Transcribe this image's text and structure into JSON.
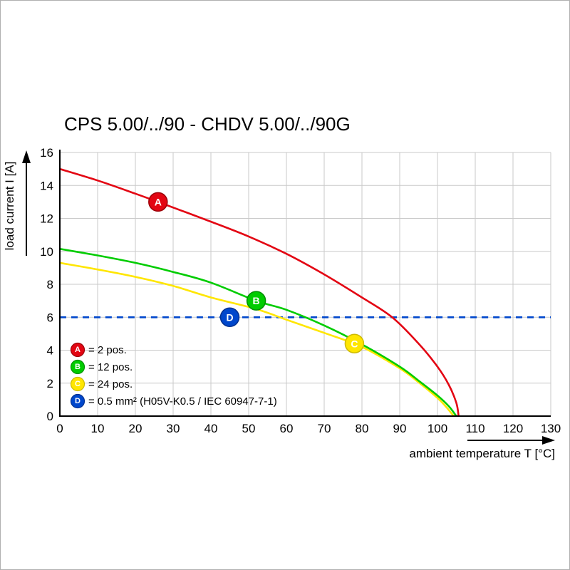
{
  "chart_data": {
    "type": "line",
    "title": "CPS 5.00/../90 - CHDV 5.00/../90G",
    "xlabel": "ambient temperature T [°C]",
    "ylabel": "load current I [A]",
    "xlim": [
      0,
      130
    ],
    "ylim": [
      0,
      16
    ],
    "xticks": [
      0,
      10,
      20,
      30,
      40,
      50,
      60,
      70,
      80,
      90,
      100,
      110,
      120,
      130
    ],
    "yticks": [
      0,
      2,
      4,
      6,
      8,
      10,
      12,
      14,
      16
    ],
    "grid": true,
    "legend_position": "bottom-left-inside",
    "series": [
      {
        "name": "A",
        "color": "#e30613",
        "border": "#9c0008",
        "marker_at": [
          26,
          13
        ],
        "points": [
          [
            0,
            15
          ],
          [
            10,
            14.3
          ],
          [
            20,
            13.5
          ],
          [
            26,
            13
          ],
          [
            40,
            11.8
          ],
          [
            50,
            10.9
          ],
          [
            60,
            9.85
          ],
          [
            70,
            8.6
          ],
          [
            80,
            7.2
          ],
          [
            88,
            6.0
          ],
          [
            95,
            4.4
          ],
          [
            100,
            3.0
          ],
          [
            103,
            1.9
          ],
          [
            105,
            0.8
          ],
          [
            105.6,
            0
          ]
        ]
      },
      {
        "name": "B",
        "color": "#00cc00",
        "border": "#008f00",
        "marker_at": [
          52,
          7
        ],
        "points": [
          [
            0,
            10.15
          ],
          [
            10,
            9.75
          ],
          [
            20,
            9.3
          ],
          [
            30,
            8.75
          ],
          [
            40,
            8.1
          ],
          [
            52,
            7.0
          ],
          [
            60,
            6.45
          ],
          [
            70,
            5.5
          ],
          [
            80,
            4.35
          ],
          [
            90,
            3.0
          ],
          [
            95,
            2.15
          ],
          [
            100,
            1.25
          ],
          [
            103,
            0.6
          ],
          [
            105,
            0
          ]
        ]
      },
      {
        "name": "C",
        "color": "#ffe600",
        "border": "#cdb900",
        "marker_at": [
          78,
          4.4
        ],
        "points": [
          [
            0,
            9.3
          ],
          [
            10,
            8.9
          ],
          [
            20,
            8.45
          ],
          [
            30,
            7.9
          ],
          [
            40,
            7.2
          ],
          [
            52,
            6.5
          ],
          [
            60,
            5.85
          ],
          [
            70,
            5.05
          ],
          [
            80,
            4.2
          ],
          [
            90,
            2.9
          ],
          [
            95,
            2.05
          ],
          [
            100,
            1.1
          ],
          [
            102.5,
            0.5
          ],
          [
            104.3,
            0
          ]
        ]
      },
      {
        "name": "D",
        "color": "#0047cc",
        "border": "#003090",
        "dashed": true,
        "marker_at": [
          45,
          6
        ],
        "points": [
          [
            0,
            6
          ],
          [
            130,
            6
          ]
        ]
      }
    ],
    "legend": [
      {
        "key": "A",
        "color": "#e30613",
        "border": "#9c0008",
        "label": "= 2 pos."
      },
      {
        "key": "B",
        "color": "#00cc00",
        "border": "#008f00",
        "label": "= 12 pos."
      },
      {
        "key": "C",
        "color": "#ffe600",
        "border": "#cdb900",
        "label": "= 24 pos."
      },
      {
        "key": "D",
        "color": "#0047cc",
        "border": "#003090",
        "label": "= 0.5 mm² (H05V-K0.5 / IEC 60947-7-1)"
      }
    ]
  }
}
